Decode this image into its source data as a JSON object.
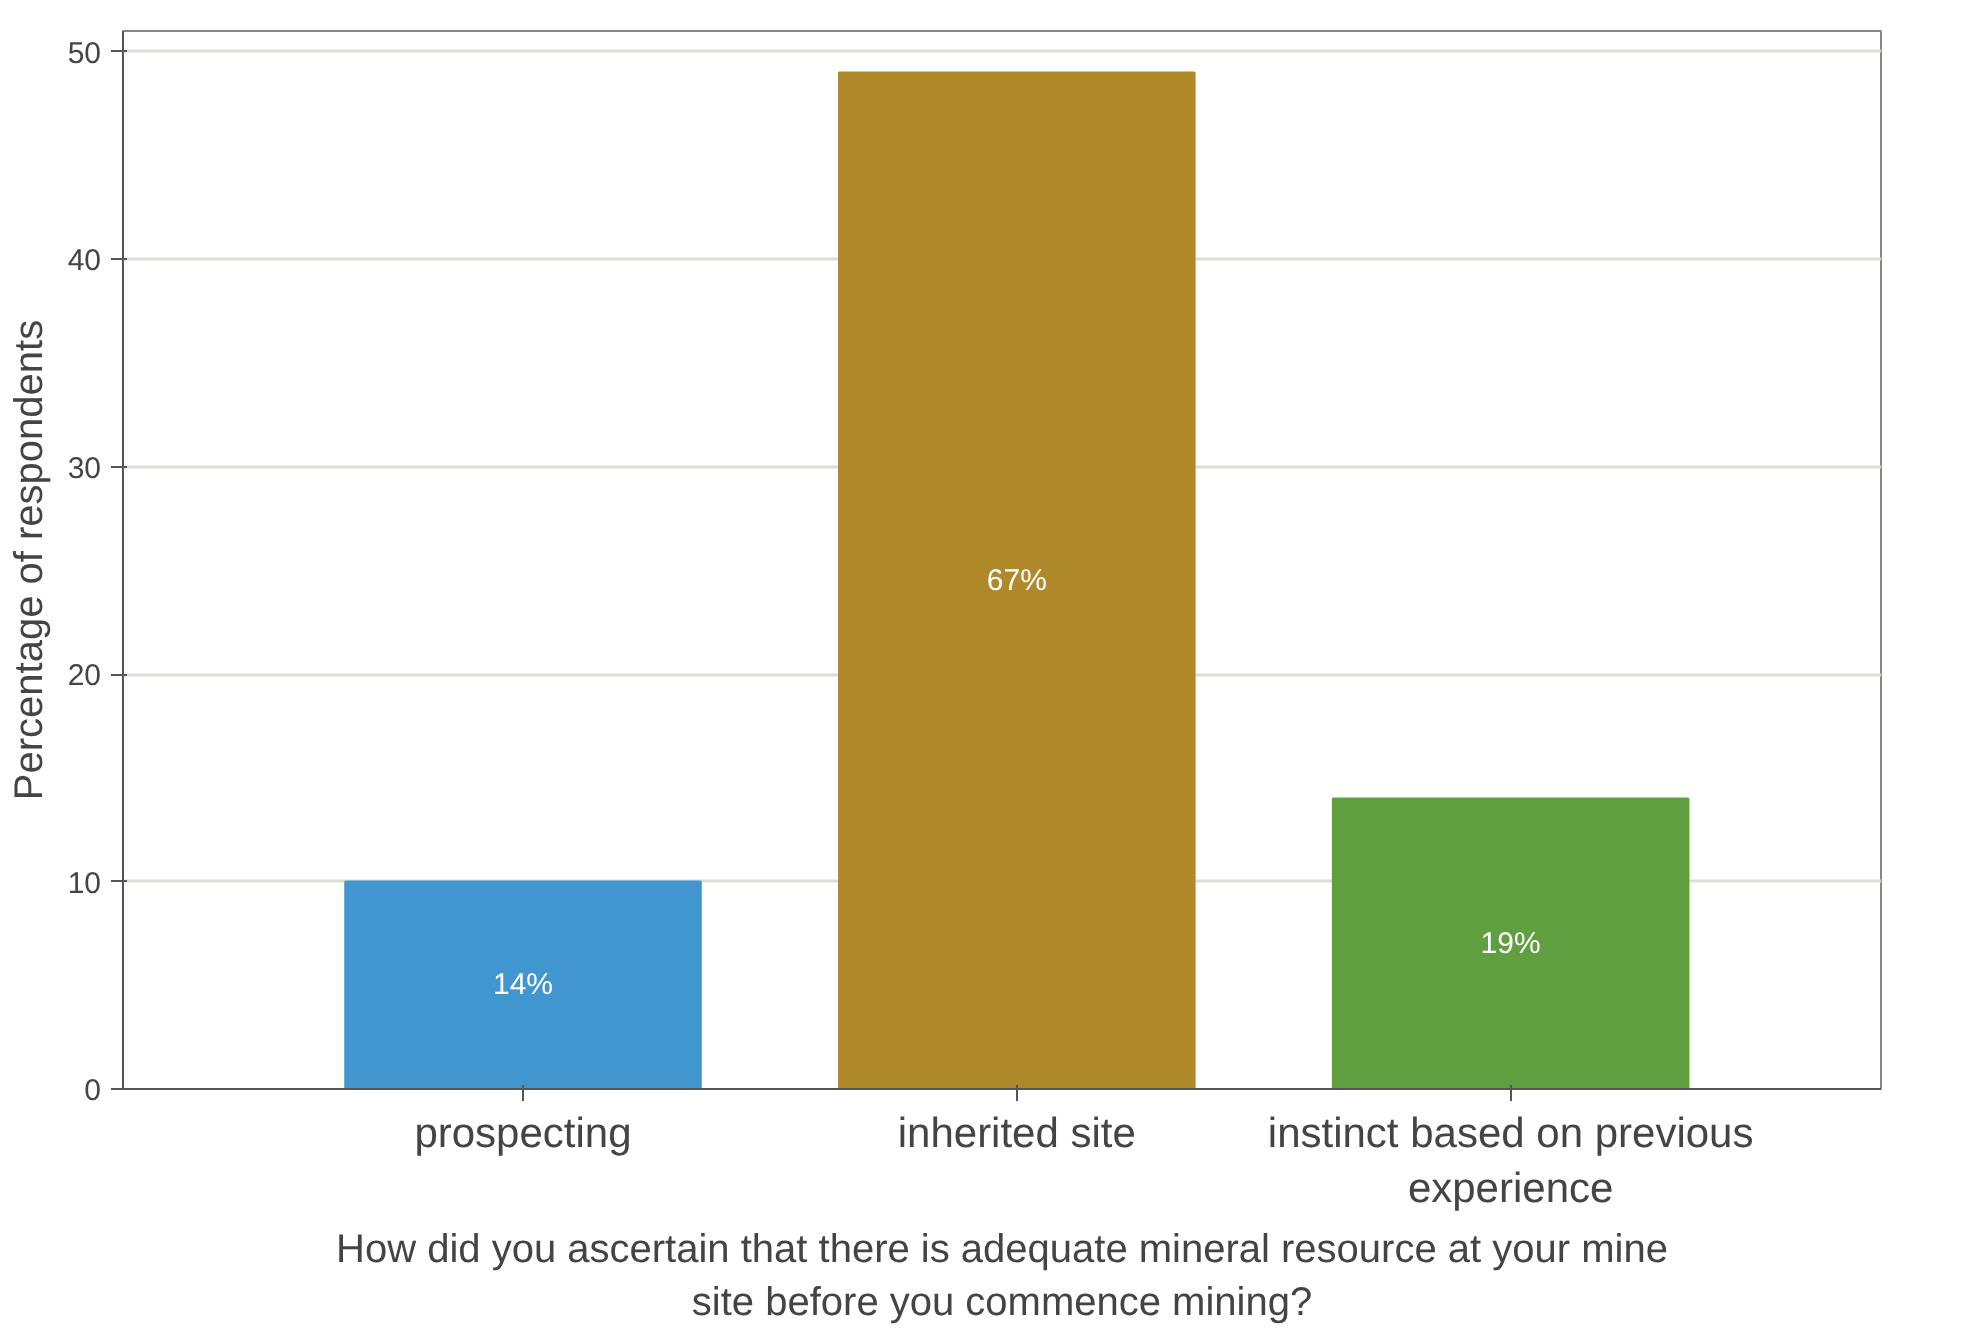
{
  "chart_data": {
    "type": "bar",
    "categories": [
      "prospecting",
      "inherited site",
      "instinct based on previous experience"
    ],
    "values": [
      10,
      49,
      14
    ],
    "colors": [
      "#4196d0",
      "#b08a2a",
      "#5f9f3f"
    ],
    "annotations": [
      "14%",
      "67%",
      "19%"
    ],
    "xlabel": "How did you ascertain that there is adequate mineral resource at your mine site before you commence mining?",
    "ylabel": "Percentage of respondents",
    "ylim": [
      0,
      51
    ],
    "yticks": [
      0,
      10,
      20,
      30,
      40,
      50
    ],
    "grid": "y"
  }
}
